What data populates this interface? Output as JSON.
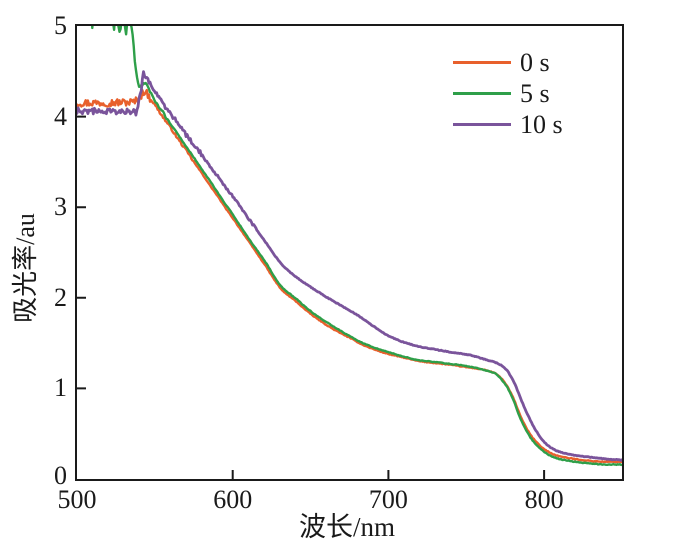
{
  "chart_data": {
    "type": "line",
    "title": "",
    "xlabel": "波长/nm",
    "ylabel": "吸光率/au",
    "xlim": [
      500,
      850
    ],
    "ylim": [
      0,
      5
    ],
    "xticks": [
      500,
      600,
      700,
      800
    ],
    "yticks": [
      0,
      1,
      2,
      3,
      4,
      5
    ],
    "grid": false,
    "legend_position": "top-right-inside",
    "frame_color": "#1a1a1a",
    "series": [
      {
        "name": "0 s",
        "color": "#E8602C",
        "width": 2.4,
        "points": [
          [
            500,
            4.15
          ],
          [
            536,
            4.16
          ],
          [
            539,
            4.19
          ],
          [
            541.5,
            4.24
          ],
          [
            543,
            4.28
          ],
          [
            545,
            4.25
          ],
          [
            547,
            4.2
          ],
          [
            550,
            4.13
          ],
          [
            555,
            4.0
          ],
          [
            560,
            3.88
          ],
          [
            565,
            3.75
          ],
          [
            570,
            3.63
          ],
          [
            575,
            3.5
          ],
          [
            580,
            3.38
          ],
          [
            585,
            3.25
          ],
          [
            590,
            3.13
          ],
          [
            595,
            3.0
          ],
          [
            600,
            2.88
          ],
          [
            610,
            2.63
          ],
          [
            620,
            2.38
          ],
          [
            632,
            2.08
          ],
          [
            640,
            1.97
          ],
          [
            648,
            1.85
          ],
          [
            655,
            1.76
          ],
          [
            665,
            1.65
          ],
          [
            675,
            1.56
          ],
          [
            685,
            1.47
          ],
          [
            700,
            1.38
          ],
          [
            710,
            1.34
          ],
          [
            720,
            1.3
          ],
          [
            730,
            1.28
          ],
          [
            740,
            1.26
          ],
          [
            752,
            1.23
          ],
          [
            760,
            1.21
          ],
          [
            768,
            1.17
          ],
          [
            772,
            1.12
          ],
          [
            776,
            1.03
          ],
          [
            780,
            0.9
          ],
          [
            784,
            0.73
          ],
          [
            788,
            0.58
          ],
          [
            792,
            0.47
          ],
          [
            796,
            0.39
          ],
          [
            800,
            0.33
          ],
          [
            805,
            0.28
          ],
          [
            810,
            0.25
          ],
          [
            820,
            0.22
          ],
          [
            830,
            0.2
          ],
          [
            840,
            0.19
          ],
          [
            850,
            0.19
          ]
        ],
        "noise": [
          {
            "from": 500,
            "to": 547,
            "amp": 0.042
          },
          {
            "from": 547,
            "to": 575,
            "amp": 0.012
          }
        ]
      },
      {
        "name": "5 s",
        "color": "#2E9F49",
        "width": 2.4,
        "points": [
          [
            500,
            5.3
          ],
          [
            509.2,
            5.3
          ],
          [
            510,
            4.92
          ],
          [
            510.8,
            5.3
          ],
          [
            521.5,
            5.3
          ],
          [
            523.5,
            5.02
          ],
          [
            525.5,
            5.12
          ],
          [
            527.5,
            4.98
          ],
          [
            529.5,
            5.1
          ],
          [
            531.5,
            4.96
          ],
          [
            533.5,
            5.06
          ],
          [
            535.5,
            4.92
          ],
          [
            536.5,
            4.75
          ],
          [
            537.5,
            4.55
          ],
          [
            538.5,
            4.42
          ],
          [
            540,
            4.34
          ],
          [
            542,
            4.35
          ],
          [
            544,
            4.36
          ],
          [
            546,
            4.3
          ],
          [
            548,
            4.24
          ],
          [
            550,
            4.17
          ],
          [
            555,
            4.05
          ],
          [
            560,
            3.92
          ],
          [
            565,
            3.8
          ],
          [
            570,
            3.67
          ],
          [
            575,
            3.55
          ],
          [
            580,
            3.42
          ],
          [
            585,
            3.3
          ],
          [
            590,
            3.17
          ],
          [
            595,
            3.04
          ],
          [
            600,
            2.92
          ],
          [
            610,
            2.66
          ],
          [
            620,
            2.42
          ],
          [
            632,
            2.11
          ],
          [
            640,
            2.0
          ],
          [
            648,
            1.88
          ],
          [
            655,
            1.79
          ],
          [
            665,
            1.68
          ],
          [
            675,
            1.58
          ],
          [
            685,
            1.49
          ],
          [
            700,
            1.4
          ],
          [
            710,
            1.35
          ],
          [
            720,
            1.31
          ],
          [
            730,
            1.29
          ],
          [
            740,
            1.27
          ],
          [
            752,
            1.24
          ],
          [
            760,
            1.21
          ],
          [
            768,
            1.17
          ],
          [
            772,
            1.11
          ],
          [
            776,
            1.02
          ],
          [
            780,
            0.88
          ],
          [
            784,
            0.7
          ],
          [
            788,
            0.55
          ],
          [
            792,
            0.44
          ],
          [
            796,
            0.36
          ],
          [
            800,
            0.3
          ],
          [
            805,
            0.25
          ],
          [
            810,
            0.22
          ],
          [
            820,
            0.19
          ],
          [
            830,
            0.17
          ],
          [
            840,
            0.16
          ],
          [
            850,
            0.16
          ]
        ],
        "noise": [
          {
            "from": 522,
            "to": 536,
            "amp": 0.08
          },
          {
            "from": 536,
            "to": 560,
            "amp": 0.015
          }
        ]
      },
      {
        "name": "10 s",
        "color": "#7A549B",
        "width": 2.8,
        "points": [
          [
            500,
            4.07
          ],
          [
            535,
            4.05
          ],
          [
            537,
            4.04
          ],
          [
            539,
            4.1
          ],
          [
            541,
            4.28
          ],
          [
            543,
            4.47
          ],
          [
            545,
            4.42
          ],
          [
            547,
            4.37
          ],
          [
            550,
            4.28
          ],
          [
            553,
            4.2
          ],
          [
            556,
            4.12
          ],
          [
            560,
            4.03
          ],
          [
            565,
            3.92
          ],
          [
            570,
            3.8
          ],
          [
            575,
            3.69
          ],
          [
            580,
            3.58
          ],
          [
            585,
            3.46
          ],
          [
            590,
            3.35
          ],
          [
            595,
            3.23
          ],
          [
            600,
            3.12
          ],
          [
            610,
            2.88
          ],
          [
            620,
            2.64
          ],
          [
            632,
            2.36
          ],
          [
            640,
            2.24
          ],
          [
            650,
            2.12
          ],
          [
            660,
            2.01
          ],
          [
            670,
            1.91
          ],
          [
            680,
            1.81
          ],
          [
            690,
            1.69
          ],
          [
            700,
            1.58
          ],
          [
            710,
            1.51
          ],
          [
            720,
            1.46
          ],
          [
            730,
            1.43
          ],
          [
            740,
            1.4
          ],
          [
            752,
            1.37
          ],
          [
            760,
            1.33
          ],
          [
            768,
            1.29
          ],
          [
            772,
            1.26
          ],
          [
            776,
            1.2
          ],
          [
            780,
            1.09
          ],
          [
            784,
            0.93
          ],
          [
            788,
            0.76
          ],
          [
            792,
            0.62
          ],
          [
            796,
            0.5
          ],
          [
            800,
            0.41
          ],
          [
            805,
            0.34
          ],
          [
            810,
            0.3
          ],
          [
            820,
            0.26
          ],
          [
            830,
            0.24
          ],
          [
            840,
            0.22
          ],
          [
            850,
            0.21
          ]
        ],
        "noise": [
          {
            "from": 500,
            "to": 545,
            "amp": 0.038
          },
          {
            "from": 545,
            "to": 580,
            "amp": 0.025
          },
          {
            "from": 580,
            "to": 615,
            "amp": 0.012
          }
        ]
      }
    ]
  }
}
